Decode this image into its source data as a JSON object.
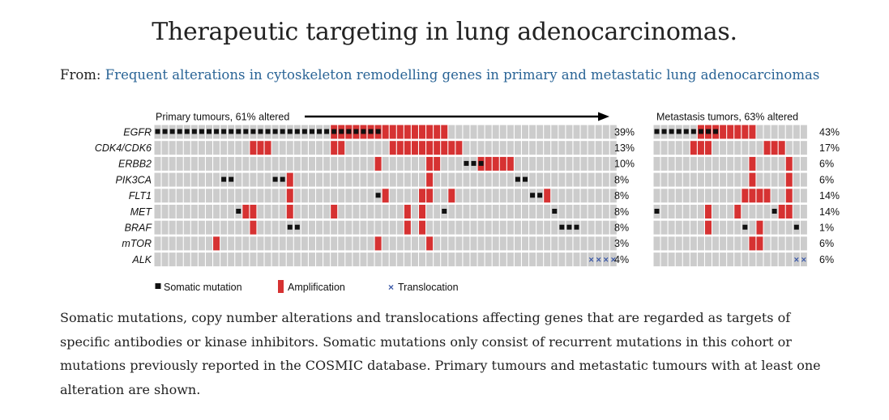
{
  "title": "Therapeutic targeting in lung adenocarcinomas.",
  "from_label": "From:",
  "from_link": "Frequent alterations in cytoskeleton remodelling genes in primary and metastatic lung adenocarcinomas",
  "caption": "Somatic mutations, copy number alterations and translocations affecting genes that are regarded as targets of specific antibodies or kinase inhibitors. Somatic mutations only consist of recurrent mutations in this cohort or mutations previously reported in the COSMIC database. Primary tumours and metastatic tumours with at least one alteration are shown.",
  "colors": {
    "empty": "#cccccc",
    "mutation": "#111111",
    "amplification": "#d63232",
    "translocation": "#3d5aa8"
  },
  "chart_data": {
    "type": "table",
    "genes": [
      "EGFR",
      "CDK4/CDK6",
      "ERBB2",
      "PIK3CA",
      "FLT1",
      "MET",
      "BRAF",
      "mTOR",
      "ALK"
    ],
    "legend": [
      "Somatic mutation",
      "Amplification",
      "Translocation"
    ],
    "panels": [
      {
        "id": "primary",
        "title": "Primary tumours, 61% altered",
        "samples": 63,
        "percents": [
          "39%",
          "13%",
          "10%",
          "8%",
          "8%",
          "8%",
          "8%",
          "3%",
          "4%"
        ],
        "alterations": {
          "EGFR": {
            "mut": [
              0,
              1,
              2,
              3,
              4,
              5,
              6,
              7,
              8,
              9,
              10,
              11,
              12,
              13,
              14,
              15,
              16,
              17,
              18,
              19,
              20,
              21,
              22,
              23,
              24,
              25,
              26,
              27,
              28,
              29,
              30
            ],
            "amp": [
              24,
              25,
              26,
              27,
              28,
              29,
              30,
              31,
              32,
              33,
              34,
              35,
              36,
              37,
              38,
              39
            ]
          },
          "CDK4/CDK6": {
            "amp": [
              13,
              14,
              15,
              24,
              25,
              32,
              33,
              34,
              35,
              36,
              37,
              38,
              39,
              40,
              41
            ]
          },
          "ERBB2": {
            "mut": [
              42,
              43,
              44
            ],
            "amp": [
              30,
              37,
              38,
              44,
              45,
              46,
              47,
              48
            ]
          },
          "PIK3CA": {
            "mut": [
              9,
              10,
              16,
              17,
              49,
              50
            ],
            "amp": [
              18,
              37
            ]
          },
          "FLT1": {
            "mut": [
              30,
              51,
              52
            ],
            "amp": [
              18,
              31,
              36,
              37,
              40,
              53
            ]
          },
          "MET": {
            "mut": [
              11,
              39,
              54
            ],
            "amp": [
              12,
              13,
              18,
              24,
              34,
              36
            ]
          },
          "BRAF": {
            "mut": [
              18,
              19,
              55,
              56,
              57
            ],
            "amp": [
              13,
              34,
              36
            ]
          },
          "mTOR": {
            "amp": [
              8,
              30,
              37
            ]
          },
          "ALK": {
            "trans": [
              59,
              60,
              61,
              62
            ]
          }
        }
      },
      {
        "id": "metastasis",
        "title": "Metastasis tumors, 63% altered",
        "samples": 21,
        "percents": [
          "43%",
          "17%",
          "6%",
          "6%",
          "14%",
          "14%",
          "1%",
          "6%",
          "6%"
        ],
        "alterations": {
          "EGFR": {
            "mut": [
              0,
              1,
              2,
              3,
              4,
              5,
              6,
              7,
              8
            ],
            "amp": [
              6,
              7,
              8,
              9,
              10,
              11,
              12,
              13
            ]
          },
          "CDK4/CDK6": {
            "amp": [
              5,
              6,
              7,
              15,
              16,
              17
            ]
          },
          "ERBB2": {
            "amp": [
              13,
              18
            ]
          },
          "PIK3CA": {
            "amp": [
              13,
              18
            ]
          },
          "FLT1": {
            "amp": [
              12,
              13,
              14,
              15,
              18
            ]
          },
          "MET": {
            "mut": [
              0,
              16
            ],
            "amp": [
              7,
              11,
              17,
              18
            ]
          },
          "BRAF": {
            "mut": [
              12,
              19
            ],
            "amp": [
              7,
              14
            ]
          },
          "mTOR": {
            "amp": [
              13,
              14
            ]
          },
          "ALK": {
            "trans": [
              19,
              20
            ]
          }
        }
      }
    ]
  }
}
